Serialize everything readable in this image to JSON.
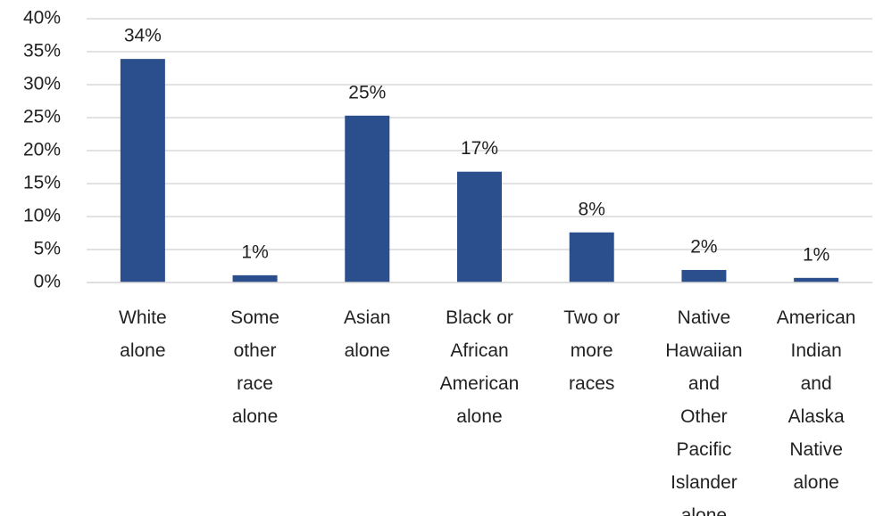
{
  "chart_data": {
    "type": "bar",
    "categories": [
      "White alone",
      "Some other race alone",
      "Asian alone",
      "Black or African American alone",
      "Two or more races",
      "Native Hawaiian and Other Pacific Islander alone",
      "American Indian and Alaska Native alone"
    ],
    "values": [
      33.9,
      1.1,
      25.3,
      16.8,
      7.6,
      1.9,
      0.7
    ],
    "value_labels": [
      "34%",
      "1%",
      "25%",
      "17%",
      "8%",
      "2%",
      "1%"
    ],
    "color": "#2b4e8c",
    "ylim": [
      0,
      40
    ],
    "yticks": [
      {
        "value": 0,
        "label": "0%"
      },
      {
        "value": 5,
        "label": "5%"
      },
      {
        "value": 10,
        "label": "10%"
      },
      {
        "value": 15,
        "label": "15%"
      },
      {
        "value": 20,
        "label": "20%"
      },
      {
        "value": 25,
        "label": "25%"
      },
      {
        "value": 30,
        "label": "30%"
      },
      {
        "value": 35,
        "label": "35%"
      },
      {
        "value": 40,
        "label": "40%"
      }
    ],
    "grid": true
  }
}
